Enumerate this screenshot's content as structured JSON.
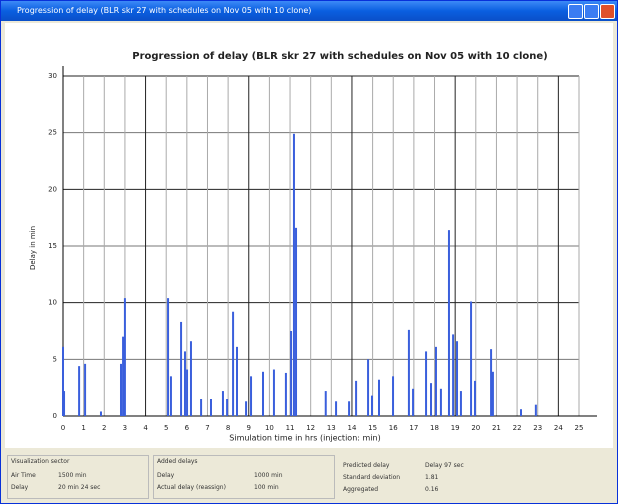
{
  "window_title": "Progression of delay (BLR skr 27 with schedules on Nov 05 with 10 clone)",
  "chart_data": {
    "type": "bar",
    "title": "Progression of delay (BLR skr 27 with schedules on Nov 05 with 10 clone)",
    "x_label": "Simulation time in hrs (injection: min)",
    "y_label": "Delay in min",
    "x": [
      0,
      0.05,
      0.78,
      1.07,
      1.84,
      2.81,
      2.91,
      3.0,
      5.09,
      5.23,
      5.72,
      5.91,
      6.01,
      6.2,
      6.69,
      7.17,
      7.75,
      7.95,
      8.24,
      8.43,
      8.87,
      9.11,
      9.69,
      10.22,
      10.8,
      11.05,
      11.19,
      11.29,
      12.73,
      13.23,
      13.86,
      14.2,
      14.78,
      14.97,
      15.31,
      15.99,
      16.76,
      16.96,
      17.59,
      17.83,
      18.07,
      18.31,
      18.7,
      18.9,
      19.09,
      19.28,
      19.77,
      19.96,
      20.74,
      20.83,
      22.19,
      22.91
    ],
    "values": [
      6.1,
      2.2,
      4.4,
      4.6,
      0.4,
      4.6,
      7,
      10.4,
      10.4,
      3.5,
      8.3,
      5.7,
      4.1,
      6.6,
      1.5,
      1.5,
      2.2,
      1.5,
      9.2,
      6.1,
      1.3,
      3.5,
      3.9,
      4.1,
      3.8,
      7.5,
      24.9,
      16.6,
      2.2,
      1.3,
      1.3,
      3.1,
      5,
      1.8,
      3.2,
      3.5,
      7.6,
      2.4,
      5.7,
      2.9,
      6.1,
      2.4,
      16.4,
      7.2,
      6.6,
      2.2,
      10.1,
      3.1,
      5.9,
      3.9,
      0.6,
      1
    ],
    "color": "#3a5fdc",
    "xlim": [
      0,
      25
    ],
    "xticks": [
      0,
      1,
      2,
      3,
      4,
      5,
      6,
      7,
      8,
      9,
      10,
      11,
      12,
      13,
      14,
      15,
      16,
      17,
      18,
      19,
      20,
      21,
      22,
      23,
      24,
      25
    ],
    "ylim": [
      0,
      30
    ],
    "yticks": [
      0,
      5,
      10,
      15,
      20,
      25,
      30
    ],
    "grid": true
  },
  "info": {
    "p0_title": "Visualization sector",
    "p0_k0": "Air Time",
    "p0_v0": "1500 min",
    "p0_k1": "Delay",
    "p0_v1": "20 min 24 sec",
    "p1_title": "Added delays",
    "p1_k0": "Delay",
    "p1_v0": "1000 min",
    "p1_k1": "Actual delay (reassign)",
    "p1_v1": "100 min",
    "p2_k0": "Predicted delay",
    "p2_v0": "Delay 97 sec",
    "p2_k1": "Standard deviation",
    "p2_v1": "1.81",
    "p2_k2": "Aggregated",
    "p2_v2": "0.16"
  }
}
